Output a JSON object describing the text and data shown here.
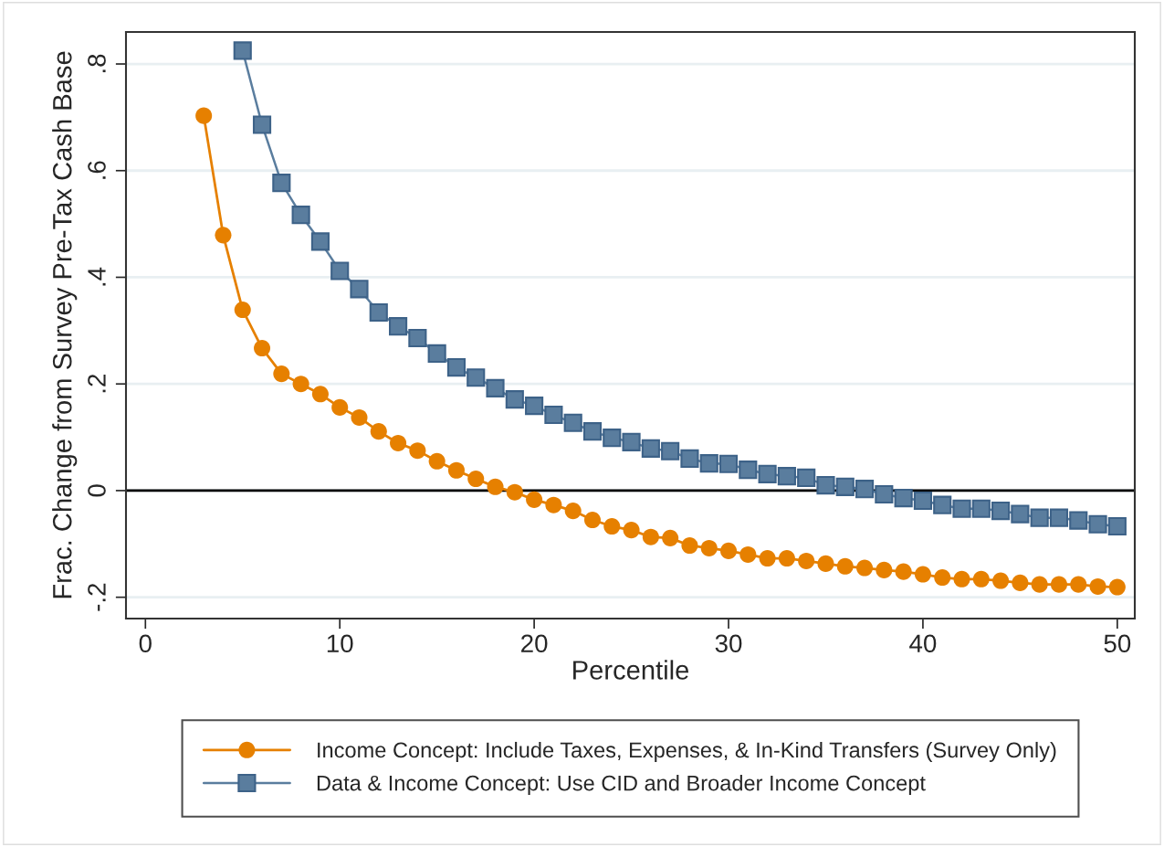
{
  "chart_data": {
    "type": "line",
    "xlabel": "Percentile",
    "ylabel": "Frac. Change from Survey Pre-Tax Cash Base",
    "xlim": [
      -1,
      50.9
    ],
    "xticks": [
      0,
      10,
      20,
      30,
      40,
      50
    ],
    "ylim": [
      -0.24,
      0.86
    ],
    "yticks": [
      {
        "value": -0.2,
        "label": "-.2"
      },
      0,
      {
        "value": 0.2,
        "label": ".2"
      },
      {
        "value": 0.4,
        "label": ".4"
      },
      {
        "value": 0.6,
        "label": ".6"
      },
      {
        "value": 0.8,
        "label": ".8"
      }
    ],
    "grid": "y",
    "legend": "bottom",
    "ref_lines": [
      {
        "axis": "y",
        "value": 0,
        "color": "#000000",
        "line_style": "solid"
      }
    ],
    "series": [
      {
        "name": "Income Concept: Include Taxes, Expenses, & In-Kind Transfers (Survey Only)",
        "color": "#e68000",
        "marker": "circle",
        "x": [
          3,
          4,
          5,
          6,
          7,
          8,
          9,
          10,
          11,
          12,
          13,
          14,
          15,
          16,
          17,
          18,
          19,
          20,
          21,
          22,
          23,
          24,
          25,
          26,
          27,
          28,
          29,
          30,
          31,
          32,
          33,
          34,
          35,
          36,
          37,
          38,
          39,
          40,
          41,
          42,
          43,
          44,
          45,
          46,
          47,
          48,
          49,
          50
        ],
        "values": [
          0.703,
          0.479,
          0.339,
          0.267,
          0.219,
          0.2,
          0.181,
          0.156,
          0.137,
          0.111,
          0.089,
          0.075,
          0.055,
          0.038,
          0.022,
          0.007,
          -0.003,
          -0.017,
          -0.027,
          -0.038,
          -0.055,
          -0.067,
          -0.074,
          -0.087,
          -0.089,
          -0.103,
          -0.108,
          -0.113,
          -0.12,
          -0.127,
          -0.127,
          -0.132,
          -0.137,
          -0.142,
          -0.145,
          -0.149,
          -0.152,
          -0.157,
          -0.163,
          -0.166,
          -0.166,
          -0.169,
          -0.173,
          -0.176,
          -0.176,
          -0.176,
          -0.18,
          -0.181
        ]
      },
      {
        "name": "Data & Income Concept: Use CID and Broader Income Concept",
        "color": "#5a7d9e",
        "marker": "square",
        "x": [
          5,
          6,
          7,
          8,
          9,
          10,
          11,
          12,
          13,
          14,
          15,
          16,
          17,
          18,
          19,
          20,
          21,
          22,
          23,
          24,
          25,
          26,
          27,
          28,
          29,
          30,
          31,
          32,
          33,
          34,
          35,
          36,
          37,
          38,
          39,
          40,
          41,
          42,
          43,
          44,
          45,
          46,
          47,
          48,
          49,
          50
        ],
        "values": [
          0.825,
          0.686,
          0.577,
          0.517,
          0.467,
          0.412,
          0.378,
          0.334,
          0.308,
          0.286,
          0.257,
          0.231,
          0.212,
          0.192,
          0.171,
          0.159,
          0.142,
          0.127,
          0.111,
          0.099,
          0.091,
          0.079,
          0.074,
          0.06,
          0.051,
          0.05,
          0.039,
          0.031,
          0.027,
          0.024,
          0.01,
          0.007,
          0.003,
          -0.007,
          -0.014,
          -0.019,
          -0.027,
          -0.034,
          -0.034,
          -0.038,
          -0.044,
          -0.051,
          -0.051,
          -0.056,
          -0.063,
          -0.067
        ]
      }
    ]
  }
}
